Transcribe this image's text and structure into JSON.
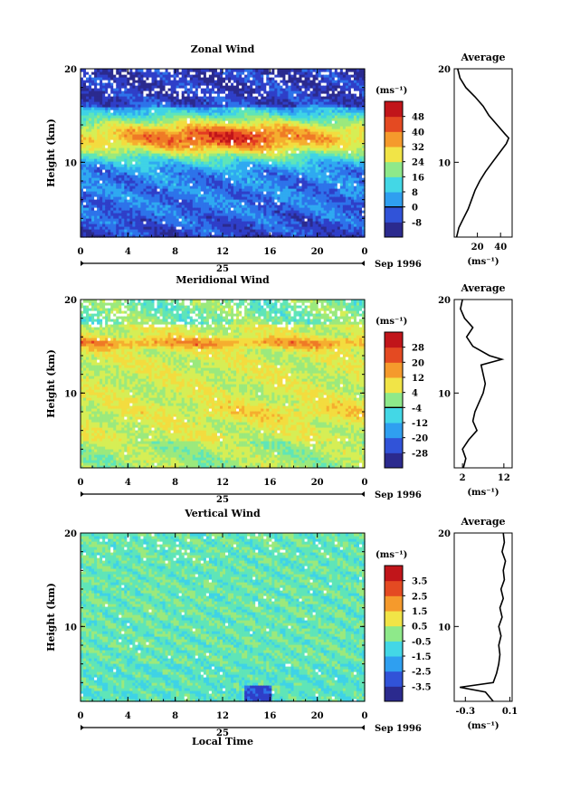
{
  "chart_data": [
    {
      "type": "heatmap",
      "title": "Zonal Wind",
      "ylabel": "Height (km)",
      "ylim": [
        2,
        20
      ],
      "xlim": [
        0,
        24
      ],
      "x_ticks": [
        "0",
        "4",
        "8",
        "12",
        "16",
        "20",
        "0"
      ],
      "y_ticks": [
        {
          "v": 10,
          "label": "10"
        },
        {
          "v": 20,
          "label": "20"
        }
      ],
      "date_label": "25",
      "date_suffix": "Sep 1996",
      "colorbar": {
        "unit": "(ms⁻¹)",
        "levels": [
          "-8",
          "0",
          "8",
          "16",
          "24",
          "32",
          "40",
          "48"
        ],
        "zero_line": "0"
      },
      "profile": {
        "title": "Average",
        "xlabel": "(ms⁻¹)",
        "xlim": [
          0,
          50
        ],
        "x_ticks": [
          {
            "v": 20,
            "label": "20"
          },
          {
            "v": 40,
            "label": "40"
          }
        ],
        "heights": [
          2,
          3,
          4,
          5,
          6,
          7,
          8,
          9,
          10,
          11,
          12,
          12.6,
          13,
          14,
          15,
          16,
          17,
          18,
          19,
          20
        ],
        "values": [
          2,
          4,
          8,
          12,
          15,
          18,
          22,
          27,
          33,
          39,
          45,
          47,
          44,
          37,
          30,
          25,
          18,
          10,
          5,
          3
        ]
      }
    },
    {
      "type": "heatmap",
      "title": "Meridional Wind",
      "ylabel": "Height (km)",
      "ylim": [
        2,
        20
      ],
      "xlim": [
        0,
        24
      ],
      "x_ticks": [
        "0",
        "4",
        "8",
        "12",
        "16",
        "20",
        "0"
      ],
      "y_ticks": [
        {
          "v": 10,
          "label": "10"
        },
        {
          "v": 20,
          "label": "20"
        }
      ],
      "date_label": "25",
      "date_suffix": "Sep 1996",
      "colorbar": {
        "unit": "(ms⁻¹)",
        "levels": [
          "-28",
          "-20",
          "-12",
          "-4",
          "4",
          "12",
          "20",
          "28"
        ],
        "zero_line": "0"
      },
      "profile": {
        "title": "Average",
        "xlabel": "(ms⁻¹)",
        "xlim": [
          0,
          14
        ],
        "x_ticks": [
          {
            "v": 2,
            "label": "2"
          },
          {
            "v": 12,
            "label": "12"
          }
        ],
        "heights": [
          2,
          3,
          4,
          5,
          6,
          7,
          8,
          9,
          10,
          11,
          12,
          13,
          13.6,
          14,
          15,
          16,
          17,
          18,
          19,
          20
        ],
        "values": [
          2.2,
          2.8,
          2.0,
          3.5,
          5.5,
          4.5,
          5.0,
          6.0,
          7.0,
          7.5,
          7.0,
          6.5,
          11.5,
          8.5,
          4.5,
          3.0,
          4.5,
          2.5,
          1.5,
          2.0
        ]
      }
    },
    {
      "type": "heatmap",
      "title": "Vertical Wind",
      "ylabel": "Height (km)",
      "xlabel": "Local Time",
      "ylim": [
        2,
        20
      ],
      "xlim": [
        0,
        24
      ],
      "x_ticks": [
        "0",
        "4",
        "8",
        "12",
        "16",
        "20",
        "0"
      ],
      "y_ticks": [
        {
          "v": 10,
          "label": "10"
        },
        {
          "v": 20,
          "label": "20"
        }
      ],
      "date_label": "25",
      "date_suffix": "Sep 1996",
      "colorbar": {
        "unit": "(ms⁻¹)",
        "levels": [
          "-3.5",
          "-2.5",
          "-1.5",
          "-0.5",
          "0.5",
          "1.5",
          "2.5",
          "3.5"
        ],
        "zero_line": ""
      },
      "profile": {
        "title": "Average",
        "xlabel": "(ms⁻¹)",
        "xlim": [
          -0.4,
          0.12
        ],
        "x_ticks": [
          {
            "v": -0.3,
            "label": "-0.3"
          },
          {
            "v": 0.1,
            "label": "0.1"
          }
        ],
        "heights": [
          2,
          3,
          3.5,
          4,
          5,
          6,
          7,
          8,
          9,
          10,
          11,
          12,
          13,
          14,
          15,
          16,
          17,
          18,
          19,
          20
        ],
        "values": [
          -0.05,
          -0.12,
          -0.35,
          -0.05,
          -0.02,
          0.0,
          0.01,
          0.0,
          0.02,
          0.0,
          0.03,
          0.01,
          0.04,
          0.02,
          0.05,
          0.04,
          0.06,
          0.03,
          0.05,
          0.04
        ]
      }
    }
  ]
}
